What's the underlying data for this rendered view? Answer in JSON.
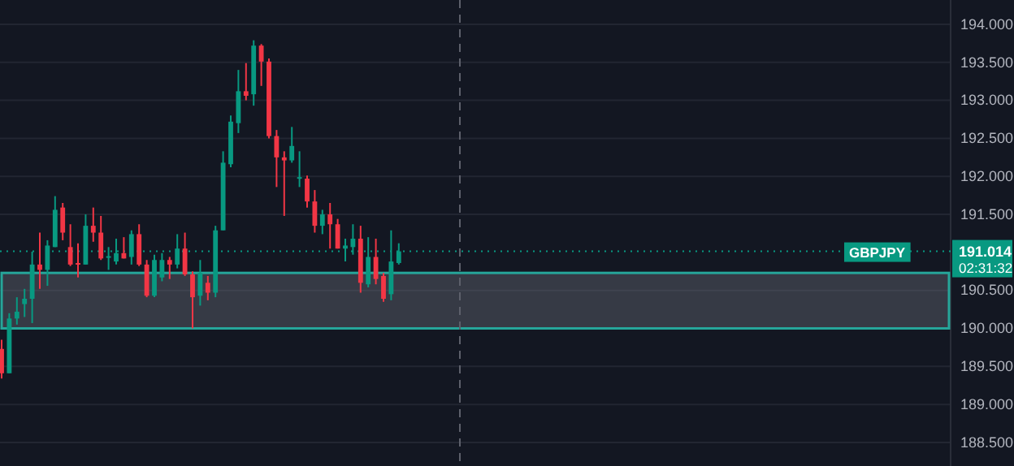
{
  "chart_data": {
    "type": "candlestick",
    "categories": [
      null,
      null,
      null,
      null,
      null,
      null,
      null,
      null,
      null,
      null,
      null,
      null,
      null,
      null,
      null,
      null,
      null,
      null,
      null,
      null,
      null,
      null,
      null,
      null,
      null,
      null,
      null,
      null,
      null,
      null,
      null,
      null,
      null,
      null,
      null,
      null,
      null,
      null,
      null,
      null,
      null,
      null,
      null,
      null,
      null,
      null,
      null,
      null,
      null,
      null,
      null,
      null,
      null,
      null,
      null,
      null,
      null,
      null,
      null,
      null,
      null,
      null,
      null,
      null,
      null,
      null,
      null,
      null,
      null,
      null,
      null,
      null,
      null,
      null,
      null,
      null,
      null,
      null,
      null,
      null,
      null,
      null,
      null,
      null,
      null,
      null,
      null,
      null,
      null,
      null,
      null,
      null,
      null,
      null,
      null,
      null,
      null,
      null,
      null,
      null,
      null,
      null,
      null,
      null,
      null,
      null,
      null,
      null,
      null,
      null,
      null,
      null,
      null,
      null,
      null,
      null,
      null,
      null,
      null,
      null,
      null,
      null,
      null,
      null,
      null
    ],
    "ohlc": [
      [
        189.73,
        189.85,
        189.34,
        189.41
      ],
      [
        189.41,
        190.2,
        189.41,
        190.13
      ],
      [
        190.13,
        190.41,
        190.05,
        190.22
      ],
      [
        190.32,
        190.52,
        190.15,
        190.39
      ],
      [
        190.39,
        191.01,
        190.07,
        190.84
      ],
      [
        190.84,
        191.26,
        190.52,
        190.77
      ],
      [
        190.77,
        191.16,
        190.56,
        191.09
      ],
      [
        191.07,
        191.74,
        191.07,
        191.56
      ],
      [
        191.59,
        191.65,
        191.16,
        191.26
      ],
      [
        191.07,
        191.37,
        190.82,
        190.84
      ],
      [
        190.86,
        191.12,
        190.67,
        190.84
      ],
      [
        190.84,
        191.5,
        190.84,
        191.35
      ],
      [
        191.35,
        191.59,
        191.14,
        191.26
      ],
      [
        191.26,
        191.48,
        190.9,
        190.92
      ],
      [
        190.93,
        191.07,
        190.77,
        190.95
      ],
      [
        190.88,
        191.18,
        190.84,
        190.99
      ],
      [
        190.99,
        191.2,
        190.92,
        190.92
      ],
      [
        190.94,
        191.29,
        190.84,
        191.24
      ],
      [
        191.24,
        191.37,
        190.82,
        190.84
      ],
      [
        190.84,
        190.9,
        190.41,
        190.43
      ],
      [
        190.43,
        190.97,
        190.41,
        190.9
      ],
      [
        190.67,
        190.99,
        190.62,
        190.9
      ],
      [
        190.9,
        190.94,
        190.65,
        190.84
      ],
      [
        190.84,
        191.24,
        190.79,
        191.05
      ],
      [
        191.05,
        191.26,
        190.69,
        190.71
      ],
      [
        190.71,
        190.75,
        190.0,
        190.41
      ],
      [
        190.43,
        190.9,
        190.3,
        190.73
      ],
      [
        190.6,
        190.69,
        190.37,
        190.47
      ],
      [
        190.47,
        191.35,
        190.41,
        191.29
      ],
      [
        191.29,
        192.33,
        191.29,
        192.18
      ],
      [
        192.16,
        192.8,
        192.12,
        192.72
      ],
      [
        192.7,
        193.4,
        192.57,
        193.12
      ],
      [
        193.12,
        193.49,
        193.0,
        193.06
      ],
      [
        193.08,
        193.79,
        192.93,
        193.72
      ],
      [
        193.72,
        193.74,
        193.19,
        193.51
      ],
      [
        193.51,
        193.55,
        192.5,
        192.53
      ],
      [
        192.53,
        192.61,
        191.86,
        192.25
      ],
      [
        192.25,
        192.33,
        191.48,
        192.21
      ],
      [
        192.21,
        192.65,
        192.18,
        192.4
      ],
      [
        191.97,
        192.33,
        191.86,
        191.99
      ],
      [
        191.97,
        192.01,
        191.59,
        191.67
      ],
      [
        191.67,
        191.82,
        191.26,
        191.35
      ],
      [
        191.35,
        191.56,
        191.24,
        191.5
      ],
      [
        191.5,
        191.65,
        191.05,
        191.37
      ],
      [
        191.37,
        191.44,
        191.05,
        191.05
      ],
      [
        191.05,
        191.18,
        190.88,
        191.09
      ],
      [
        191.07,
        191.37,
        190.97,
        191.18
      ],
      [
        191.18,
        191.35,
        190.47,
        190.6
      ],
      [
        190.58,
        191.2,
        190.54,
        190.94
      ],
      [
        190.94,
        191.18,
        190.58,
        190.65
      ],
      [
        190.69,
        190.73,
        190.35,
        190.39
      ],
      [
        190.45,
        191.29,
        190.37,
        190.88
      ],
      [
        190.86,
        191.12,
        190.84,
        191.014
      ],
      null,
      null,
      null,
      null,
      null,
      null,
      null,
      null,
      null,
      null,
      null,
      null,
      null,
      null,
      null,
      null,
      null,
      null,
      null,
      null,
      null,
      null,
      null,
      null,
      null,
      null,
      null,
      null,
      null,
      null,
      null,
      null,
      null,
      null,
      null,
      null,
      null,
      null,
      null,
      null,
      null,
      null,
      null,
      null,
      null,
      null,
      null,
      null,
      null,
      null,
      null,
      null,
      null,
      null,
      null,
      null,
      null,
      null,
      null,
      null,
      null,
      null,
      null,
      null,
      null,
      null,
      null,
      null,
      null,
      null,
      null,
      null
    ],
    "colors": [
      "#f23645",
      "#089981",
      "#089981",
      "#089981",
      "#089981",
      "#f23645",
      "#089981",
      "#089981",
      "#f23645",
      "#f23645",
      "#f23645",
      "#089981",
      "#f23645",
      "#f23645",
      "#089981",
      "#089981",
      "#f23645",
      "#089981",
      "#f23645",
      "#f23645",
      "#089981",
      "#089981",
      "#f23645",
      "#089981",
      "#f23645",
      "#f23645",
      "#089981",
      "#f23645",
      "#089981",
      "#089981",
      "#089981",
      "#089981",
      "#f23645",
      "#089981",
      "#f23645",
      "#f23645",
      "#f23645",
      "#f23645",
      "#089981",
      "#089981",
      "#f23645",
      "#f23645",
      "#089981",
      "#f23645",
      "#f23645",
      "#089981",
      "#089981",
      "#f23645",
      "#089981",
      "#f23645",
      "#f23645",
      "#089981",
      "#089981",
      null,
      null,
      null,
      null,
      null,
      null,
      null,
      null,
      null,
      null,
      null,
      null,
      null,
      null,
      null,
      null,
      null,
      null,
      null,
      null,
      null,
      null,
      null,
      null,
      null,
      null,
      null,
      null,
      null,
      null,
      null,
      null,
      null,
      null,
      null,
      null,
      null,
      null,
      null,
      null,
      null,
      null,
      null,
      null,
      null,
      null,
      null,
      null,
      null,
      null,
      null,
      null,
      null,
      null,
      null,
      null,
      null,
      null,
      null,
      null,
      null,
      null,
      null,
      null,
      null,
      null,
      null,
      null,
      null,
      null,
      null,
      null
    ],
    "ylim": [
      188.19,
      194.32
    ],
    "yticks": [
      {
        "value": 188.5,
        "label": "188.500"
      },
      {
        "value": 189,
        "label": "189.000"
      },
      {
        "value": 189.5,
        "label": "189.500"
      },
      {
        "value": 190,
        "label": "190.000"
      },
      {
        "value": 190.5,
        "label": "190.500"
      },
      {
        "value": 191.5,
        "label": "191.500"
      },
      {
        "value": 192,
        "label": "192.000"
      },
      {
        "value": 192.5,
        "label": "192.500"
      },
      {
        "value": 193,
        "label": "193.000"
      },
      {
        "value": 193.5,
        "label": "193.500"
      },
      {
        "value": 194,
        "label": "194.000"
      }
    ],
    "tick_labels": "y",
    "grid": "y",
    "ref_lines": [
      {
        "axis": "y",
        "value": 191.014,
        "label": "GBPJPY",
        "color": "#089981",
        "line_style": "dotted"
      }
    ],
    "bands": [
      {
        "axis": "y",
        "from": 190.0,
        "to": 190.73,
        "color": "#26a69a"
      }
    ],
    "annotations": [
      "191.014",
      "02:31:32"
    ]
  }
}
